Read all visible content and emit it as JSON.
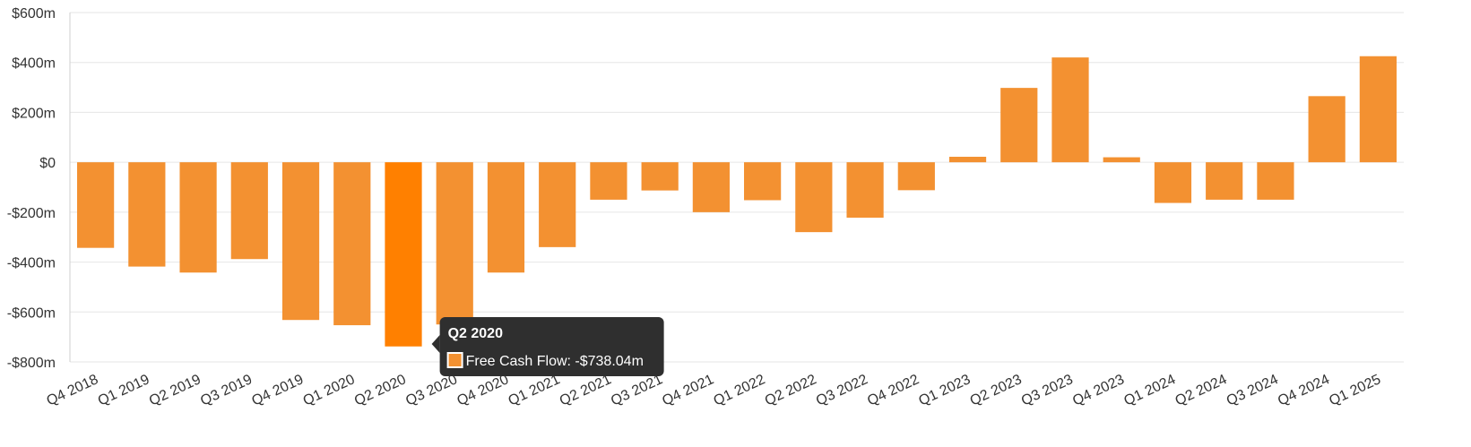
{
  "chart_data": {
    "type": "bar",
    "categories": [
      "Q4 2018",
      "Q1 2019",
      "Q2 2019",
      "Q3 2019",
      "Q4 2019",
      "Q1 2020",
      "Q2 2020",
      "Q3 2020",
      "Q4 2020",
      "Q1 2021",
      "Q2 2021",
      "Q3 2021",
      "Q4 2021",
      "Q1 2022",
      "Q2 2022",
      "Q3 2022",
      "Q4 2022",
      "Q1 2023",
      "Q2 2023",
      "Q3 2023",
      "Q4 2023",
      "Q1 2024",
      "Q2 2024",
      "Q3 2024",
      "Q4 2024",
      "Q1 2025"
    ],
    "series": [
      {
        "name": "Free Cash Flow",
        "values": [
          -343,
          -418,
          -442,
          -388,
          -632,
          -653,
          -738.04,
          -650,
          -442,
          -340,
          -150,
          -113,
          -200,
          -152,
          -280,
          -222,
          -112,
          22,
          298,
          420,
          20,
          -163,
          -150,
          -150,
          265,
          425
        ]
      }
    ],
    "title": "",
    "xlabel": "",
    "ylabel": "",
    "ylim": [
      -800,
      600
    ],
    "y_ticks": [
      600,
      400,
      200,
      0,
      -200,
      -400,
      -600,
      -800
    ],
    "y_tick_labels": [
      "$600m",
      "$400m",
      "$200m",
      "$0",
      "-$200m",
      "-$400m",
      "-$600m",
      "-$800m"
    ],
    "grid": true,
    "legend": "none",
    "bar_color": "#f39131",
    "highlight_color": "#ff8000",
    "tooltip": {
      "visible": true,
      "category_index": 6,
      "title": "Q2 2020",
      "text": "Free Cash Flow: -$738.04m"
    }
  }
}
